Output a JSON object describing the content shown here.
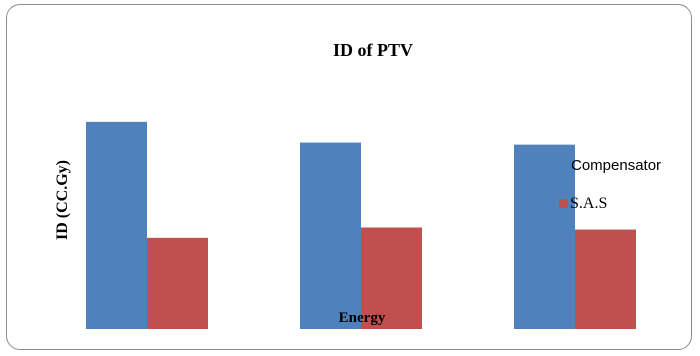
{
  "chart_data": {
    "type": "bar",
    "title": "ID of PTV",
    "xlabel": "Energy",
    "ylabel": "ID (CC.Gy)",
    "categories": [
      "",
      "",
      ""
    ],
    "series": [
      {
        "name": "Compensator",
        "color": "#4f81bd",
        "values": [
          100,
          90,
          89
        ]
      },
      {
        "name": "S.A.S",
        "color": "#c0504d",
        "values": [
          44,
          49,
          48
        ]
      }
    ],
    "ylim": [
      0,
      112
    ],
    "grid": false,
    "legend_position": "right"
  }
}
